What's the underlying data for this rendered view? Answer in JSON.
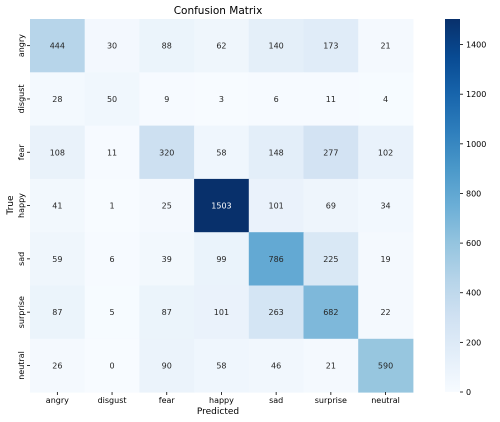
{
  "chart_data": {
    "type": "heatmap",
    "title": "Confusion Matrix",
    "xlabel": "Predicted",
    "ylabel": "True",
    "x_categories": [
      "angry",
      "disgust",
      "fear",
      "happy",
      "sad",
      "surprise",
      "neutral"
    ],
    "y_categories": [
      "angry",
      "disgust",
      "fear",
      "happy",
      "sad",
      "surprise",
      "neutral"
    ],
    "values": [
      [
        444,
        30,
        88,
        62,
        140,
        173,
        21
      ],
      [
        28,
        50,
        9,
        3,
        6,
        11,
        4
      ],
      [
        108,
        11,
        320,
        58,
        148,
        277,
        102
      ],
      [
        41,
        1,
        25,
        1503,
        101,
        69,
        34
      ],
      [
        59,
        6,
        39,
        99,
        786,
        225,
        19
      ],
      [
        87,
        5,
        87,
        101,
        263,
        682,
        22
      ],
      [
        26,
        0,
        90,
        58,
        46,
        21,
        590
      ]
    ],
    "colorbar": {
      "min": 0,
      "max": 1503,
      "ticks": [
        0,
        200,
        400,
        600,
        800,
        1000,
        1200,
        1400
      ],
      "colormap": "Blues"
    }
  }
}
